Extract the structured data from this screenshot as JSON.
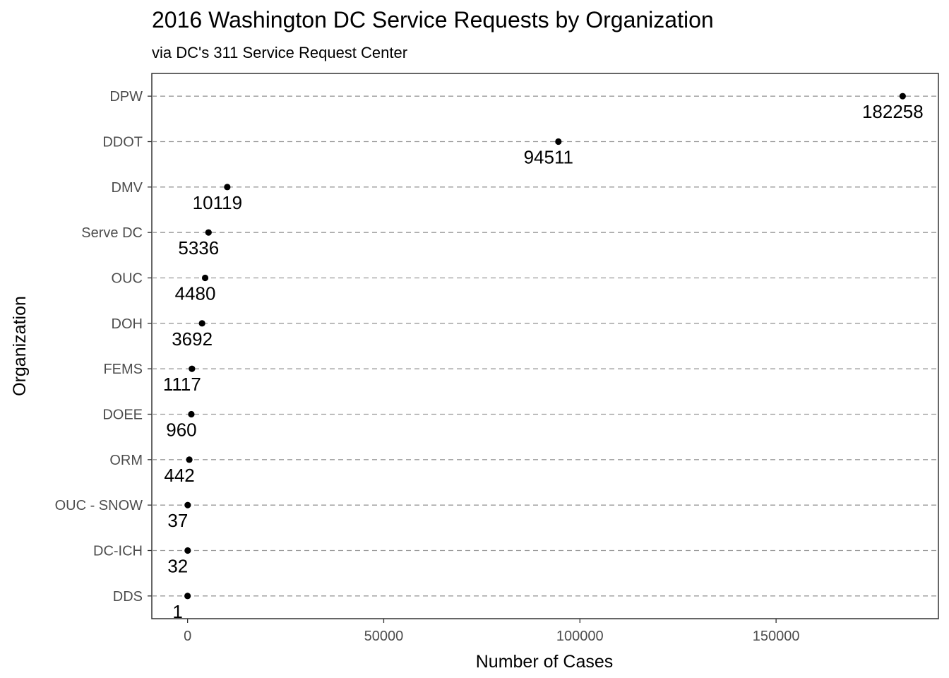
{
  "chart_data": {
    "type": "scatter",
    "title": "2016 Washington DC Service Requests by Organization",
    "subtitle": "via DC's 311 Service Request Center",
    "xlabel": "Number of Cases",
    "ylabel": "Organization",
    "xlim": [
      -9113,
      191371
    ],
    "x_ticks": [
      0,
      50000,
      100000,
      150000
    ],
    "x_tick_labels": [
      "0",
      "50000",
      "100000",
      "150000"
    ],
    "grid": "horizontal-dashed",
    "categories": [
      "DPW",
      "DDOT",
      "DMV",
      "Serve DC",
      "OUC",
      "DOH",
      "FEMS",
      "DOEE",
      "ORM",
      "OUC - SNOW",
      "DC-ICH",
      "DDS"
    ],
    "values": [
      182258,
      94511,
      10119,
      5336,
      4480,
      3692,
      1117,
      960,
      442,
      37,
      32,
      1
    ],
    "data_labels": [
      "182258",
      "94511",
      "10119",
      "5336",
      "4480",
      "3692",
      "1117",
      "960",
      "442",
      "37",
      "32",
      "1"
    ]
  }
}
